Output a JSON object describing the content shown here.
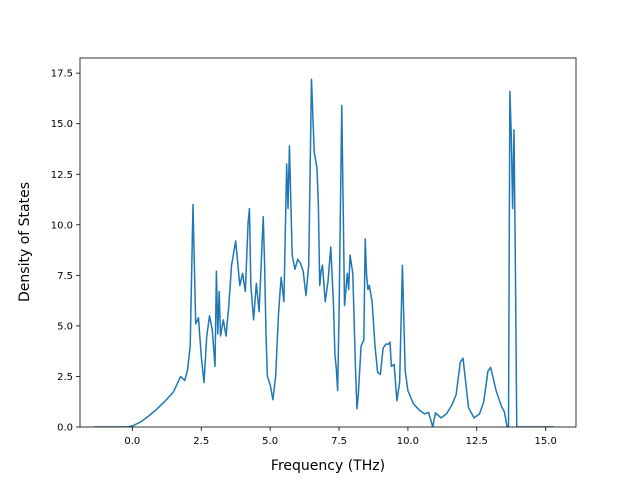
{
  "chart_data": {
    "type": "line",
    "xlabel": "Frequency (THz)",
    "ylabel": "Density of States",
    "xlim": [
      -1.9,
      16.1
    ],
    "ylim": [
      0,
      18.25
    ],
    "xticks": [
      0.0,
      2.5,
      5.0,
      7.5,
      10.0,
      12.5,
      15.0
    ],
    "xtick_labels": [
      "0.0",
      "2.5",
      "5.0",
      "7.5",
      "10.0",
      "12.5",
      "15.0"
    ],
    "yticks": [
      0.0,
      2.5,
      5.0,
      7.5,
      10.0,
      12.5,
      15.0,
      17.5
    ],
    "ytick_labels": [
      "0.0",
      "2.5",
      "5.0",
      "7.5",
      "10.0",
      "12.5",
      "15.0",
      "17.5"
    ],
    "grid": false,
    "line_color": "#1f77b4",
    "series": [
      {
        "x": [
          -1.4,
          -0.2,
          0.0,
          0.3,
          0.6,
          0.9,
          1.2,
          1.5,
          1.75,
          1.9,
          2.0,
          2.1,
          2.2,
          2.3,
          2.4,
          2.5,
          2.6,
          2.7,
          2.8,
          2.9,
          3.0,
          3.05,
          3.1,
          3.15,
          3.2,
          3.3,
          3.4,
          3.5,
          3.6,
          3.75,
          3.9,
          4.0,
          4.1,
          4.2,
          4.25,
          4.3,
          4.4,
          4.5,
          4.6,
          4.75,
          4.8,
          4.85,
          4.9,
          5.0,
          5.1,
          5.2,
          5.3,
          5.35,
          5.4,
          5.5,
          5.6,
          5.65,
          5.7,
          5.8,
          5.9,
          6.0,
          6.1,
          6.2,
          6.3,
          6.4,
          6.45,
          6.5,
          6.6,
          6.7,
          6.75,
          6.8,
          6.85,
          6.9,
          7.0,
          7.1,
          7.2,
          7.3,
          7.35,
          7.4,
          7.45,
          7.5,
          7.6,
          7.7,
          7.8,
          7.85,
          7.9,
          8.0,
          8.1,
          8.15,
          8.2,
          8.3,
          8.4,
          8.45,
          8.5,
          8.55,
          8.6,
          8.7,
          8.8,
          8.9,
          9.0,
          9.1,
          9.2,
          9.3,
          9.35,
          9.4,
          9.5,
          9.6,
          9.7,
          9.8,
          9.9,
          10.0,
          10.2,
          10.4,
          10.6,
          10.75,
          10.9,
          11.0,
          11.2,
          11.4,
          11.6,
          11.75,
          11.9,
          12.0,
          12.2,
          12.4,
          12.6,
          12.75,
          12.85,
          12.9,
          13.0,
          13.1,
          13.2,
          13.3,
          13.4,
          13.5,
          13.6,
          13.65,
          13.7,
          13.75,
          13.8,
          13.85,
          13.9,
          13.95,
          14.0,
          14.1,
          14.5,
          15.3
        ],
        "y": [
          0.0,
          0.0,
          0.05,
          0.25,
          0.55,
          0.9,
          1.3,
          1.75,
          2.5,
          2.3,
          2.8,
          4.0,
          11.0,
          5.1,
          5.4,
          3.5,
          2.2,
          4.5,
          5.5,
          4.8,
          3.0,
          7.7,
          4.6,
          6.7,
          4.5,
          5.3,
          4.5,
          6.0,
          8.0,
          9.2,
          7.0,
          7.6,
          6.7,
          10.1,
          10.8,
          7.0,
          5.3,
          7.1,
          5.7,
          10.4,
          8.0,
          4.6,
          2.5,
          2.1,
          1.35,
          2.5,
          5.5,
          6.5,
          7.4,
          6.2,
          13.0,
          10.8,
          13.9,
          8.5,
          7.8,
          8.3,
          8.1,
          7.7,
          6.5,
          8.0,
          12.5,
          17.2,
          13.6,
          12.8,
          11.0,
          7.0,
          7.7,
          8.0,
          6.2,
          7.2,
          8.9,
          6.0,
          3.6,
          2.9,
          1.8,
          5.5,
          15.9,
          6.0,
          7.6,
          6.8,
          8.5,
          7.6,
          2.8,
          0.9,
          1.6,
          4.0,
          4.3,
          9.3,
          7.5,
          6.8,
          7.0,
          6.2,
          4.1,
          2.7,
          2.6,
          3.9,
          4.1,
          4.1,
          4.2,
          3.0,
          3.1,
          1.3,
          2.2,
          8.0,
          2.8,
          1.8,
          1.15,
          0.85,
          0.65,
          0.72,
          0.0,
          0.7,
          0.45,
          0.65,
          1.1,
          1.6,
          3.2,
          3.4,
          0.95,
          0.45,
          0.65,
          1.25,
          2.2,
          2.75,
          2.95,
          2.4,
          1.8,
          1.4,
          1.0,
          0.75,
          0.0,
          0.0,
          16.6,
          14.5,
          10.8,
          14.7,
          8.0,
          0.0,
          0.0,
          0.0,
          0.0,
          0.0
        ]
      }
    ]
  }
}
